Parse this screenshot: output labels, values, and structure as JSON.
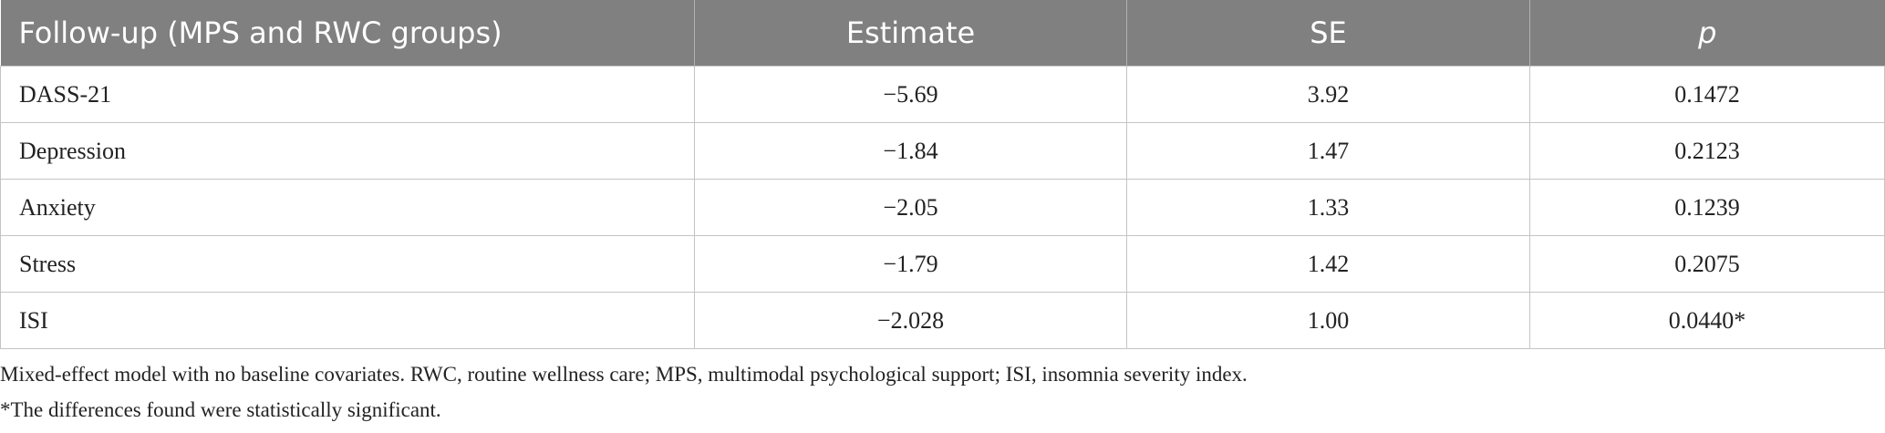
{
  "table": {
    "header": [
      "Follow-up (MPS and RWC groups)",
      "Estimate",
      "SE",
      "p"
    ],
    "rows": [
      [
        "DASS-21",
        "−5.69",
        "3.92",
        "0.1472"
      ],
      [
        "Depression",
        "−1.84",
        "1.47",
        "0.2123"
      ],
      [
        "Anxiety",
        "−2.05",
        "1.33",
        "0.1239"
      ],
      [
        "Stress",
        "−1.79",
        "1.42",
        "0.2075"
      ],
      [
        "ISI",
        "−2.028",
        "1.00",
        "0.0440*"
      ]
    ]
  },
  "notes": [
    "Mixed-effect model with no baseline covariates. RWC, routine wellness care; MPS, multimodal psychological support; ISI, insomnia severity index.",
    "*The differences found were statistically significant."
  ]
}
